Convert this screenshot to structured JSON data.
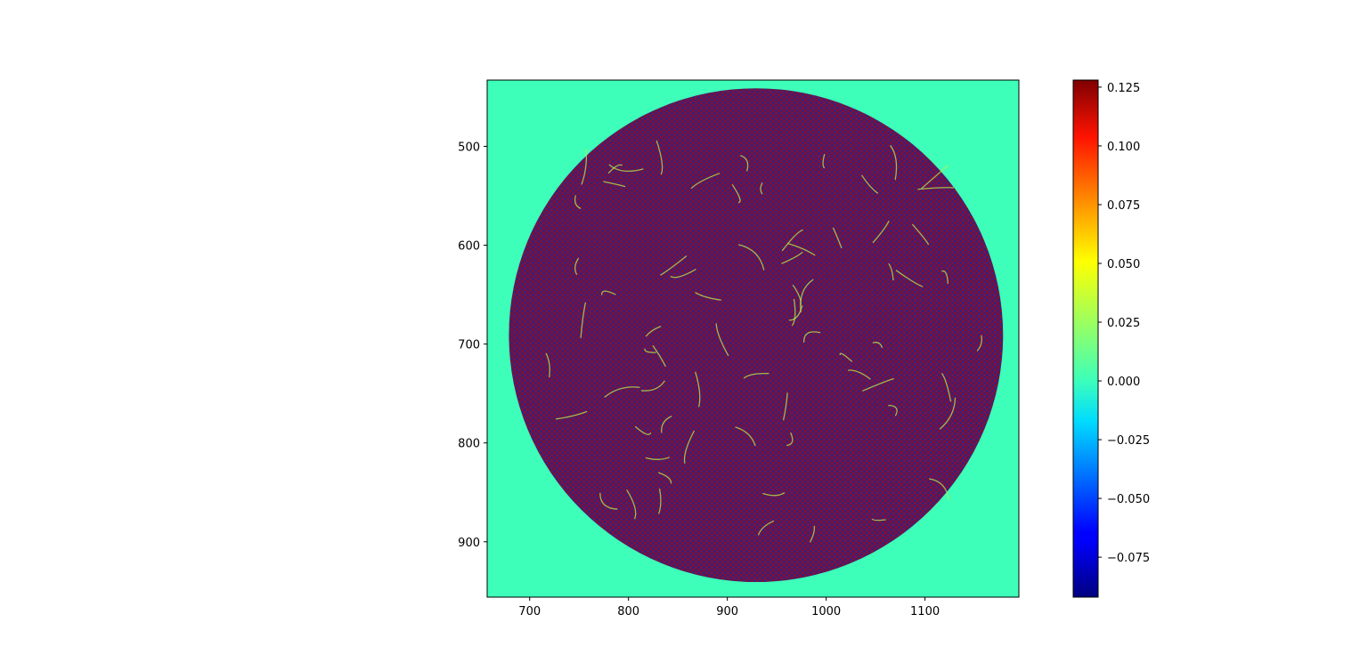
{
  "chart_data": [
    {
      "type": "heatmap",
      "title": "",
      "xlabel": "",
      "ylabel": "",
      "colormap": "jet",
      "xlim": [
        657,
        1195
      ],
      "ylim": [
        956,
        433
      ],
      "y_inverted": true,
      "xticks": [
        700,
        800,
        900,
        1000,
        1100
      ],
      "yticks": [
        500,
        600,
        700,
        800,
        900
      ],
      "background_value": 0.0,
      "background_color": "#3dffb9",
      "disk": {
        "center": [
          929,
          691
        ],
        "radius": 250
      },
      "disk_pattern": "fine checkerboard texture alternating between dark blue/purple and dark red values, crossed by thin green-yellow filament curves",
      "colorbar": {
        "min": -0.092,
        "max": 0.128,
        "ticks": [
          -0.075,
          -0.05,
          -0.025,
          0.0,
          0.025,
          0.05,
          0.075,
          0.1,
          0.125
        ],
        "tick_labels": [
          "−0.075",
          "−0.050",
          "−0.025",
          "0.000",
          "0.025",
          "0.050",
          "0.075",
          "0.100",
          "0.125"
        ]
      }
    }
  ]
}
